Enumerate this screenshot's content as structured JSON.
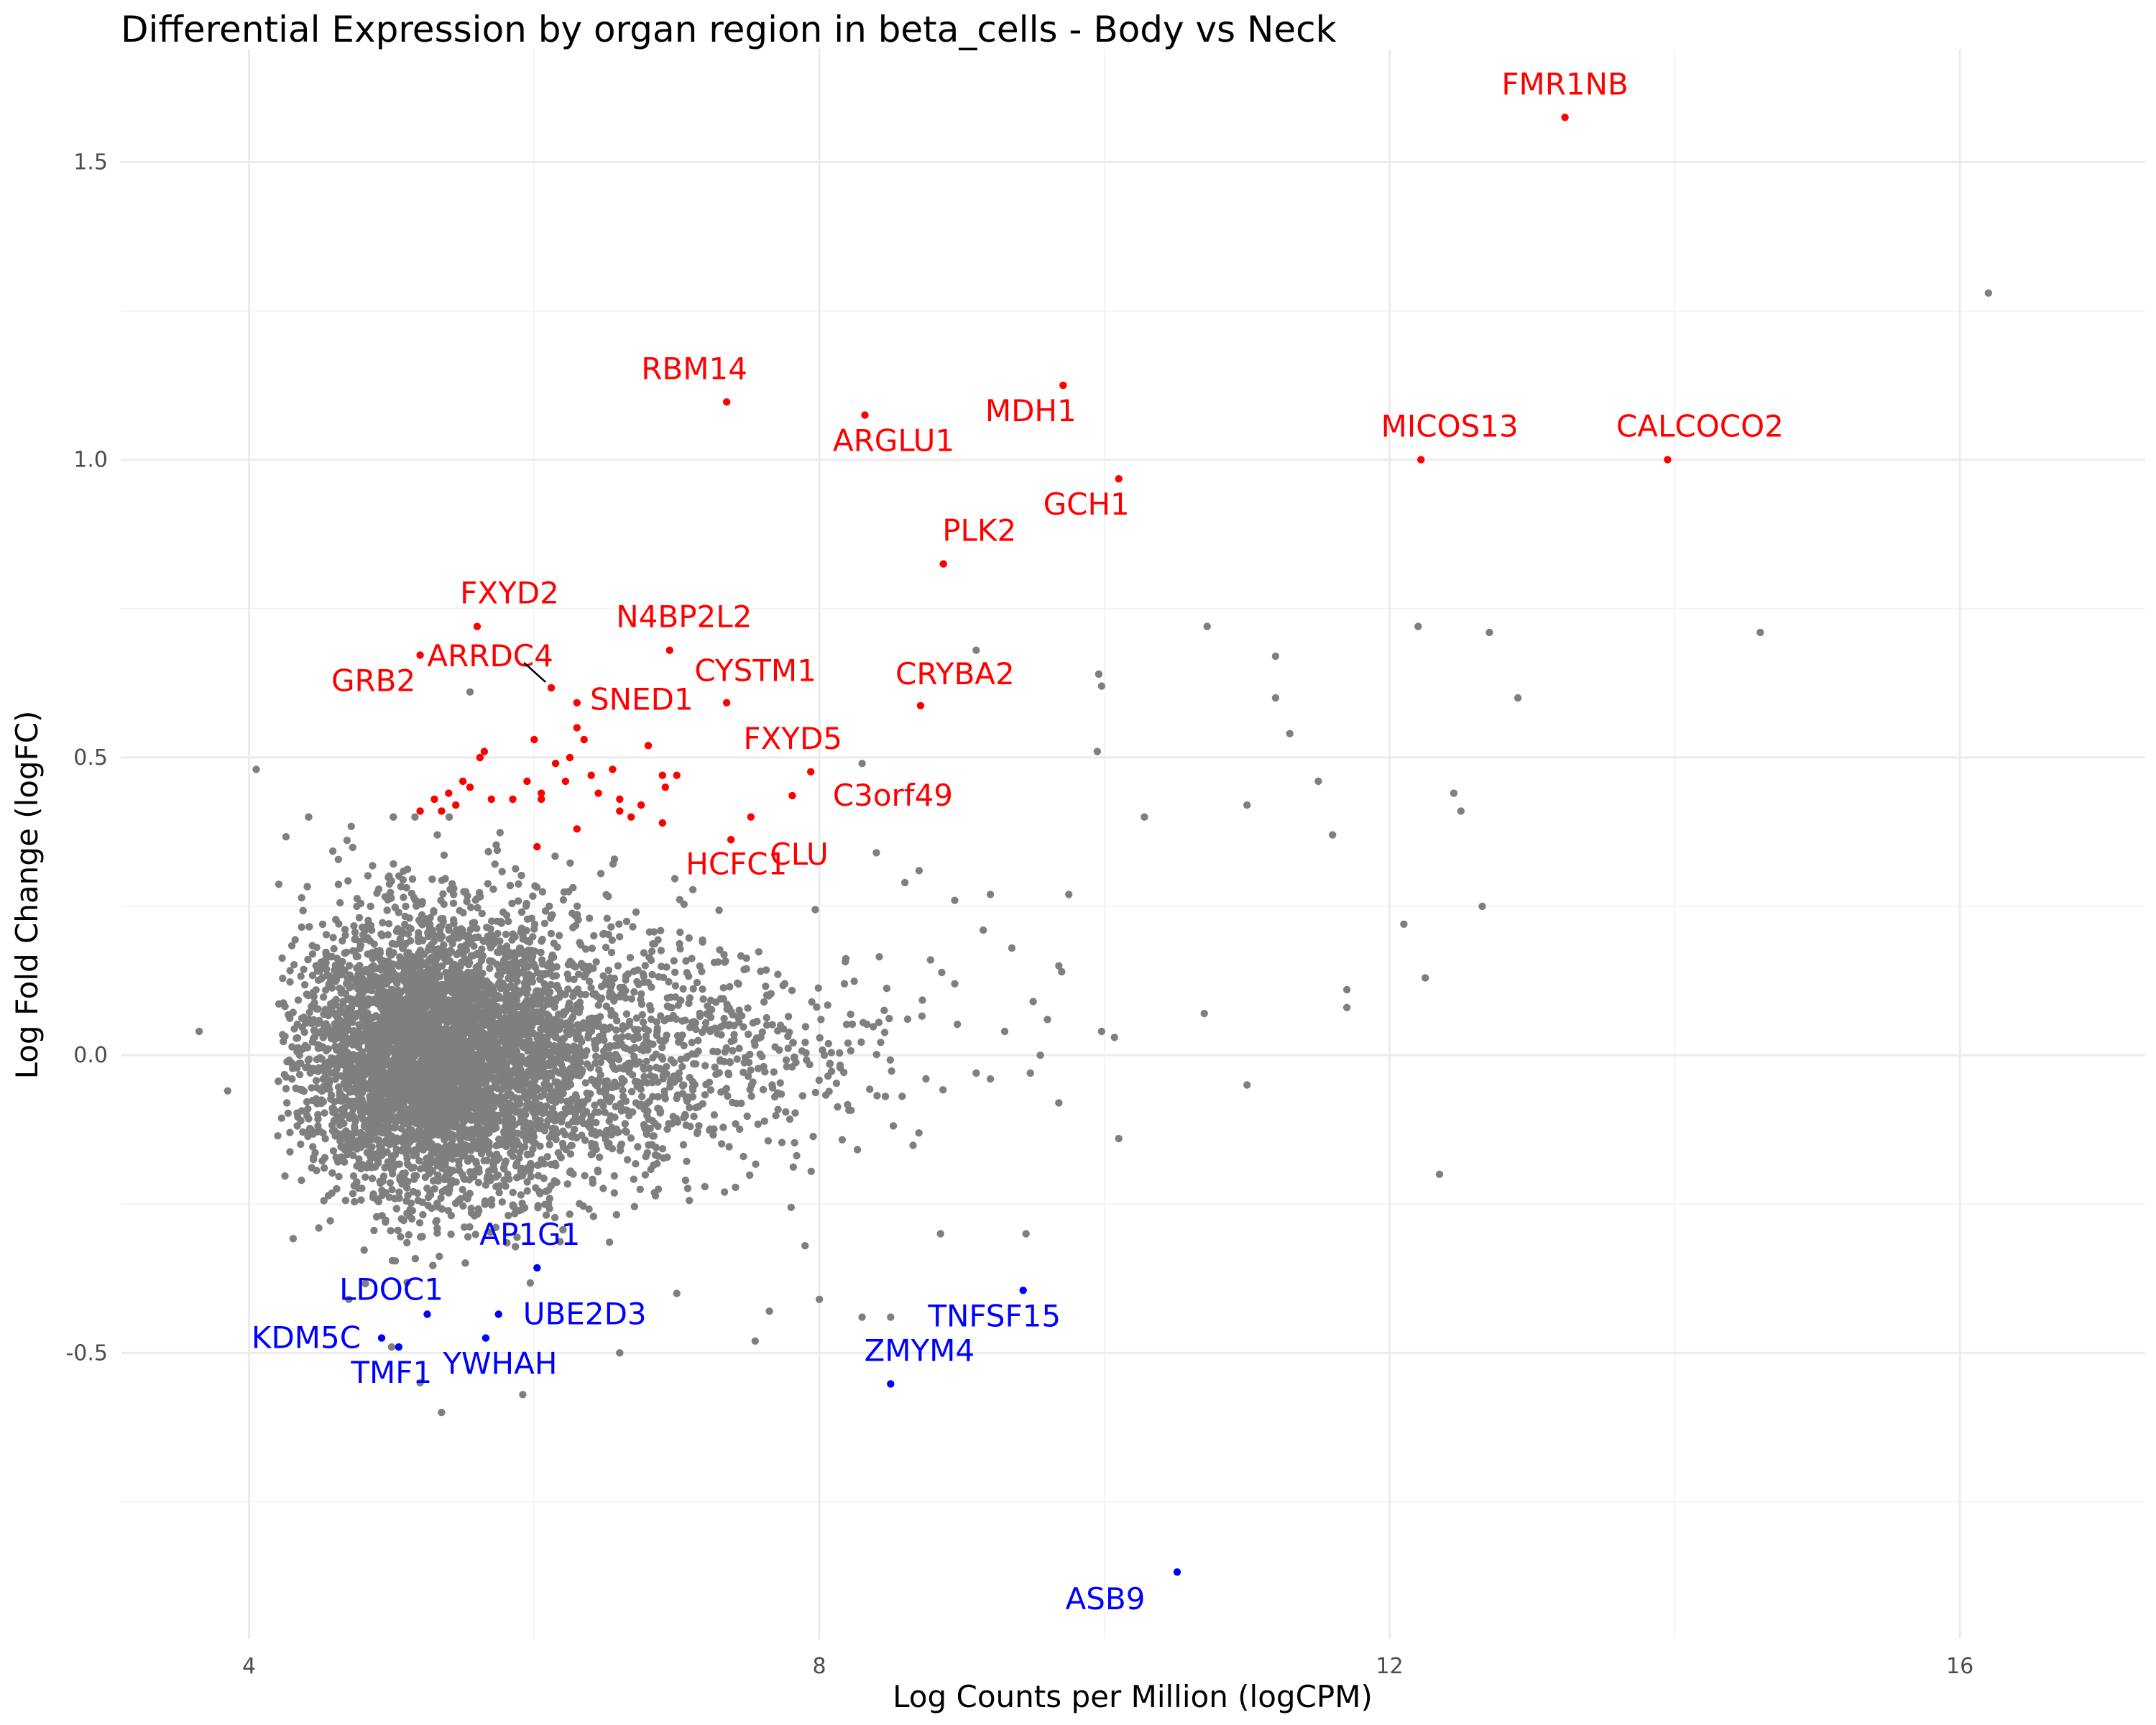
{
  "chart_data": {
    "type": "scatter",
    "title": "Differential Expression by organ region in beta_cells - Body vs Neck",
    "xlabel": "Log Counts per Million (logCPM)",
    "ylabel": "Log Fold Change (logFC)",
    "xlim": [
      3.1,
      17.3
    ],
    "ylim": [
      -0.98,
      1.69
    ],
    "x_ticks": [
      4,
      8,
      12,
      16
    ],
    "x_tick_labels": [
      "4",
      "8",
      "12",
      "16"
    ],
    "y_ticks": [
      -0.5,
      0.0,
      0.5,
      1.0,
      1.5
    ],
    "y_tick_labels": [
      "-0.5",
      "0.0",
      "0.5",
      "1.0",
      "1.5"
    ],
    "grid": true,
    "colors": {
      "background": "#ffffff",
      "grid": "#ebebeb",
      "neutral": "#7f7f7f",
      "up": "#ff0000",
      "down": "#0000ff"
    },
    "labeled_up": [
      {
        "gene": "FMR1NB",
        "x": 13.23,
        "y": 1.575
      },
      {
        "gene": "RBM14",
        "x": 7.35,
        "y": 1.097
      },
      {
        "gene": "ARGLU1",
        "x": 8.32,
        "y": 1.075
      },
      {
        "gene": "MDH1",
        "x": 9.71,
        "y": 1.125
      },
      {
        "gene": "MICOS13",
        "x": 12.22,
        "y": 1.0
      },
      {
        "gene": "CALCOCO2",
        "x": 13.95,
        "y": 1.0
      },
      {
        "gene": "GCH1",
        "x": 10.1,
        "y": 0.968
      },
      {
        "gene": "PLK2",
        "x": 8.87,
        "y": 0.825
      },
      {
        "gene": "FXYD2",
        "x": 5.6,
        "y": 0.72
      },
      {
        "gene": "N4BP2L2",
        "x": 6.95,
        "y": 0.68
      },
      {
        "gene": "GRB2",
        "x": 5.2,
        "y": 0.672
      },
      {
        "gene": "ARRDC4",
        "x": 6.12,
        "y": 0.617
      },
      {
        "gene": "SNED1",
        "x": 6.3,
        "y": 0.592
      },
      {
        "gene": "CYSTM1",
        "x": 7.35,
        "y": 0.592
      },
      {
        "gene": "CRYBA2",
        "x": 8.71,
        "y": 0.587
      },
      {
        "gene": "FXYD5",
        "x": 7.94,
        "y": 0.476
      },
      {
        "gene": "C3orf49",
        "x": 7.81,
        "y": 0.436
      },
      {
        "gene": "CLU",
        "x": 7.38,
        "y": 0.362
      },
      {
        "gene": "HCFC1",
        "x": 7.52,
        "y": 0.4
      }
    ],
    "labeled_down": [
      {
        "gene": "AP1G1",
        "x": 6.02,
        "y": -0.357
      },
      {
        "gene": "LDOC1",
        "x": 5.25,
        "y": -0.435
      },
      {
        "gene": "TNFSF15",
        "x": 9.43,
        "y": -0.395
      },
      {
        "gene": "UBE2D3",
        "x": 5.75,
        "y": -0.435
      },
      {
        "gene": "KDM5C",
        "x": 4.93,
        "y": -0.475
      },
      {
        "gene": "YWHAH",
        "x": 5.66,
        "y": -0.475
      },
      {
        "gene": "TMF1",
        "x": 5.05,
        "y": -0.49
      },
      {
        "gene": "ZMYM4",
        "x": 8.5,
        "y": -0.552
      },
      {
        "gene": "ASB9",
        "x": 10.51,
        "y": -0.868
      }
    ],
    "up_unlabeled": [
      [
        5.3,
        0.43
      ],
      [
        5.4,
        0.44
      ],
      [
        5.45,
        0.42
      ],
      [
        5.55,
        0.45
      ],
      [
        5.7,
        0.43
      ],
      [
        5.85,
        0.43
      ],
      [
        5.95,
        0.46
      ],
      [
        6.0,
        0.53
      ],
      [
        6.05,
        0.44
      ],
      [
        6.15,
        0.49
      ],
      [
        6.25,
        0.5
      ],
      [
        6.3,
        0.55
      ],
      [
        6.35,
        0.53
      ],
      [
        6.4,
        0.47
      ],
      [
        6.45,
        0.44
      ],
      [
        6.55,
        0.48
      ],
      [
        6.6,
        0.41
      ],
      [
        6.68,
        0.4
      ],
      [
        6.75,
        0.42
      ],
      [
        6.8,
        0.52
      ],
      [
        6.9,
        0.47
      ],
      [
        7.0,
        0.47
      ],
      [
        6.92,
        0.45
      ],
      [
        5.65,
        0.51
      ],
      [
        6.3,
        0.38
      ],
      [
        5.2,
        0.41
      ],
      [
        6.02,
        0.35
      ],
      [
        6.22,
        0.46
      ],
      [
        5.5,
        0.46
      ],
      [
        6.6,
        0.43
      ],
      [
        5.35,
        0.41
      ],
      [
        5.62,
        0.5
      ],
      [
        6.05,
        0.43
      ],
      [
        6.9,
        0.39
      ]
    ],
    "gray_sparse": [
      [
        3.65,
        0.04
      ],
      [
        3.85,
        -0.06
      ],
      [
        4.05,
        0.48
      ],
      [
        5.55,
        0.61
      ],
      [
        10.72,
        0.72
      ],
      [
        10.7,
        0.07
      ],
      [
        11.0,
        -0.05
      ],
      [
        11.2,
        0.67
      ],
      [
        11.2,
        0.6
      ],
      [
        11.3,
        0.54
      ],
      [
        11.0,
        0.42
      ],
      [
        11.5,
        0.46
      ],
      [
        11.6,
        0.37
      ],
      [
        11.7,
        0.11
      ],
      [
        11.7,
        0.08
      ],
      [
        12.2,
        0.72
      ],
      [
        12.7,
        0.71
      ],
      [
        12.9,
        0.6
      ],
      [
        12.1,
        0.22
      ],
      [
        12.25,
        0.13
      ],
      [
        12.35,
        -0.2
      ],
      [
        12.45,
        0.44
      ],
      [
        12.5,
        0.41
      ],
      [
        12.65,
        0.25
      ],
      [
        14.6,
        0.71
      ],
      [
        16.2,
        1.28
      ],
      [
        9.96,
        0.64
      ],
      [
        9.98,
        0.62
      ],
      [
        9.95,
        0.51
      ],
      [
        10.28,
        0.4
      ],
      [
        9.98,
        0.04
      ],
      [
        10.1,
        -0.14
      ],
      [
        9.1,
        0.68
      ],
      [
        9.5,
        0.09
      ],
      [
        9.68,
        0.15
      ],
      [
        9.75,
        0.27
      ],
      [
        9.48,
        -0.03
      ],
      [
        9.68,
        -0.08
      ],
      [
        9.3,
        0.04
      ],
      [
        9.1,
        -0.03
      ],
      [
        9.45,
        -0.3
      ],
      [
        9.7,
        0.14
      ],
      [
        9.6,
        0.06
      ],
      [
        9.2,
        0.27
      ],
      [
        8.85,
        -0.3
      ],
      [
        8.5,
        -0.44
      ],
      [
        8.3,
        -0.44
      ],
      [
        8.0,
        -0.41
      ],
      [
        7.9,
        -0.32
      ],
      [
        7.55,
        -0.48
      ],
      [
        7.65,
        -0.43
      ],
      [
        7.0,
        -0.4
      ],
      [
        6.6,
        -0.5
      ],
      [
        5.92,
        -0.57
      ],
      [
        5.35,
        -0.6
      ],
      [
        5.2,
        -0.55
      ],
      [
        5.0,
        -0.49
      ],
      [
        4.7,
        -0.41
      ],
      [
        8.3,
        0.49
      ],
      [
        8.4,
        0.34
      ],
      [
        8.6,
        0.29
      ],
      [
        8.95,
        0.26
      ],
      [
        9.15,
        0.21
      ],
      [
        8.78,
        0.16
      ],
      [
        8.95,
        0.12
      ],
      [
        9.35,
        0.18
      ],
      [
        10.07,
        0.03
      ],
      [
        9.2,
        -0.04
      ],
      [
        9.55,
        0.0
      ],
      [
        8.7,
        0.31
      ]
    ]
  }
}
